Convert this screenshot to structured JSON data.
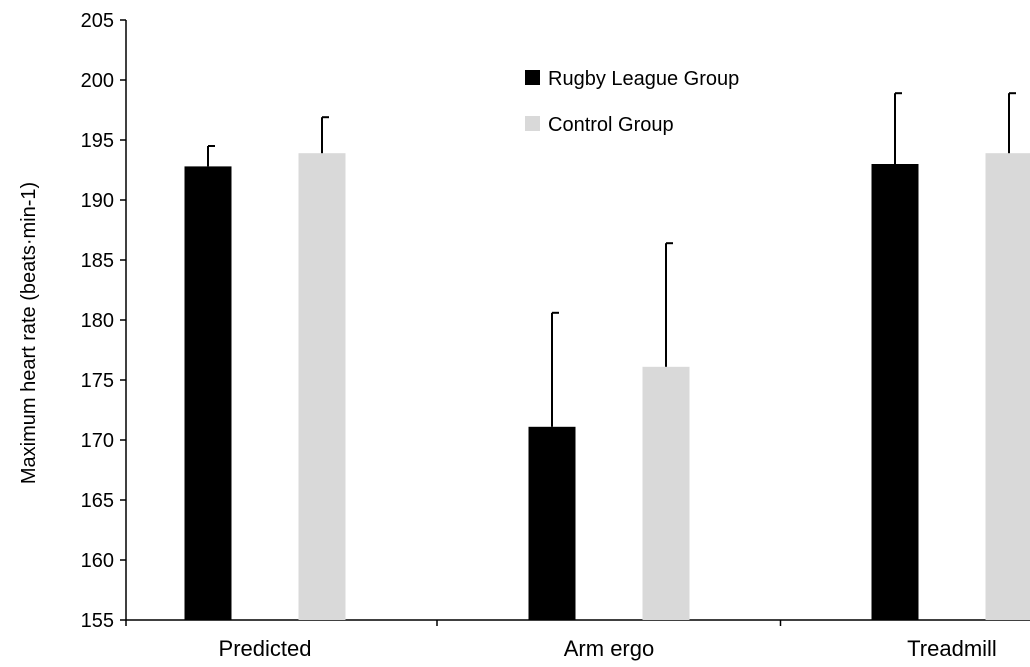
{
  "chart_data": {
    "type": "bar",
    "title": "",
    "xlabel": "",
    "ylabel": "Maximum heart rate (beats·min-1)",
    "ylim": [
      155,
      205
    ],
    "yticks": [
      155,
      160,
      165,
      170,
      175,
      180,
      185,
      190,
      195,
      200,
      205
    ],
    "categories": [
      "Predicted",
      "Arm ergo",
      "Treadmill"
    ],
    "series": [
      {
        "name": "Rugby League Group",
        "color": "#000000",
        "values": [
          192.8,
          171.1,
          193.0
        ],
        "error_plus": [
          1.7,
          9.5,
          5.9
        ]
      },
      {
        "name": "Control Group",
        "color": "#d9d9d9",
        "values": [
          193.9,
          176.1,
          193.9
        ],
        "error_plus": [
          3.0,
          10.3,
          5.0
        ]
      }
    ],
    "legend_position": "top-center",
    "grid": false
  }
}
